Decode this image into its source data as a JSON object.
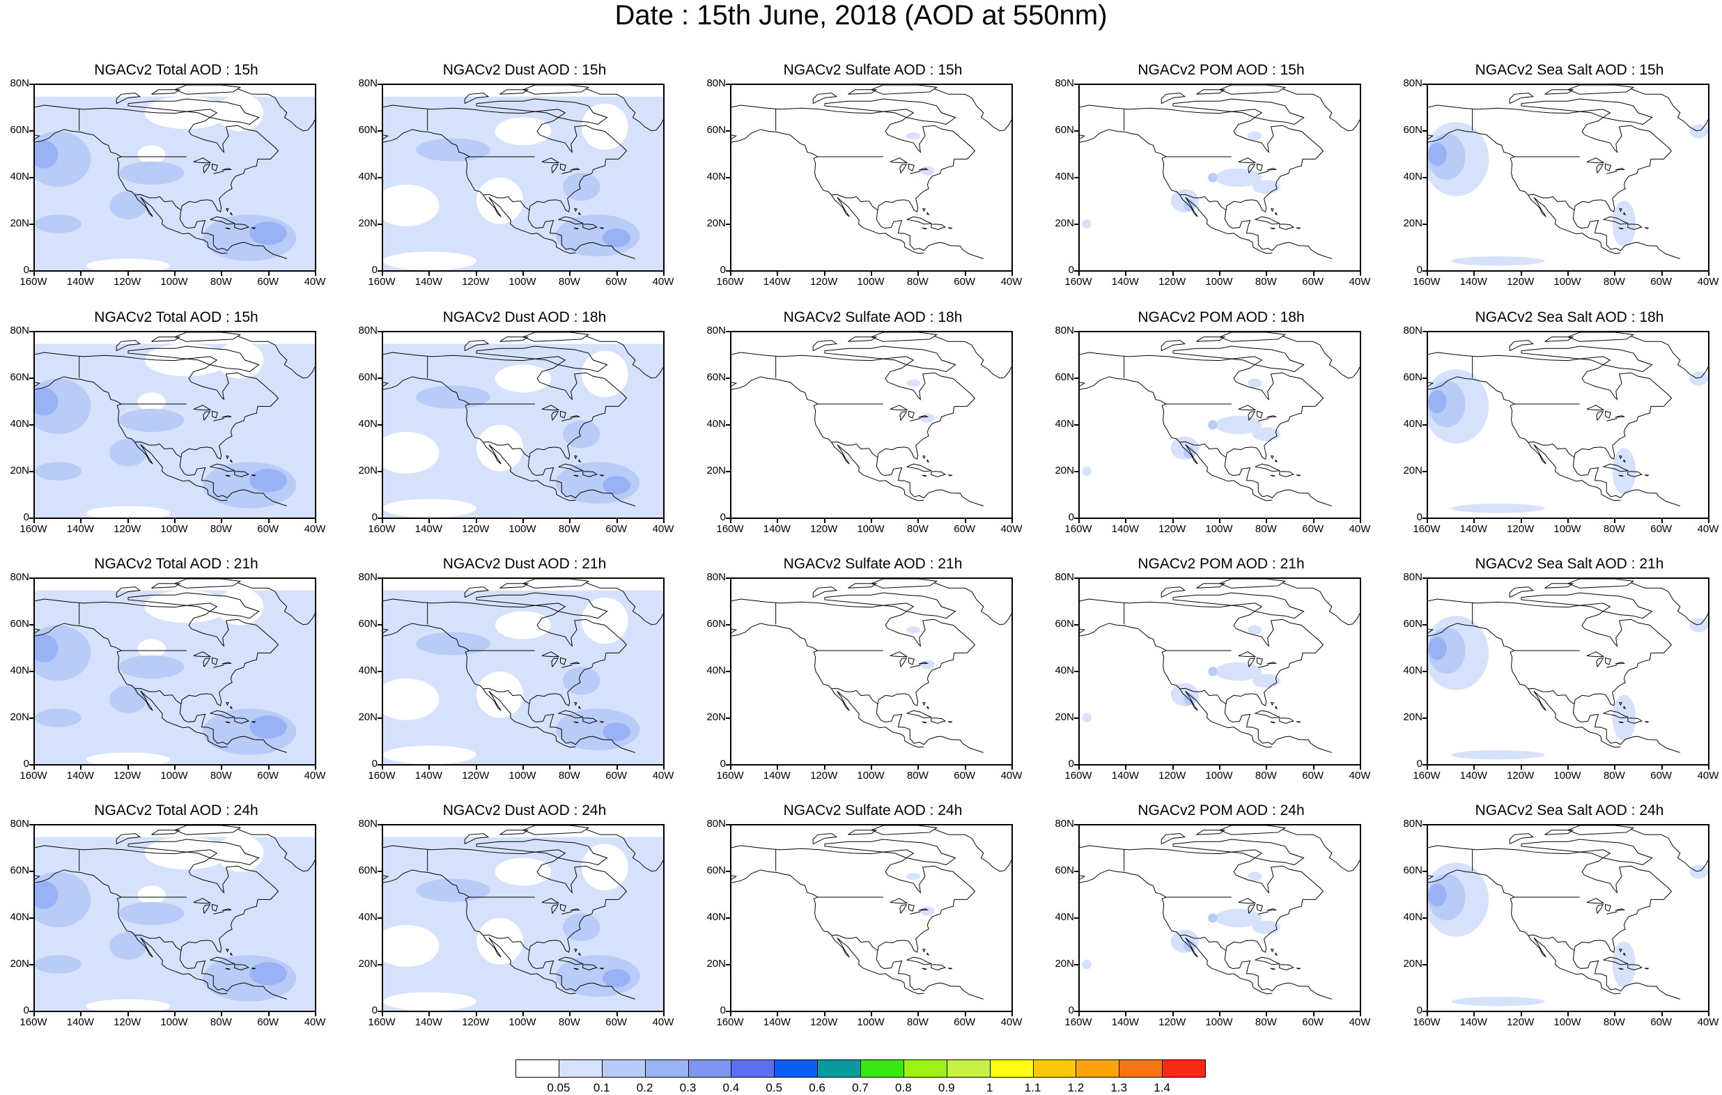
{
  "figure": {
    "title": "Date : 15th June, 2018 (AOD at 550nm)"
  },
  "axes": {
    "y_ticks": [
      "80N",
      "60N",
      "40N",
      "20N",
      "0"
    ],
    "x_ticks": [
      "160W",
      "140W",
      "120W",
      "100W",
      "80W",
      "60W",
      "40W"
    ]
  },
  "panels": [
    [
      "NGACv2 Total AOD : 15h",
      "NGACv2 Dust AOD : 15h",
      "NGACv2 Sulfate AOD : 15h",
      "NGACv2 POM AOD : 15h",
      "NGACv2 Sea Salt AOD : 15h"
    ],
    [
      "NGACv2 Total AOD : 15h",
      "NGACv2 Dust AOD : 18h",
      "NGACv2 Sulfate AOD : 18h",
      "NGACv2 POM AOD : 18h",
      "NGACv2 Sea Salt AOD : 18h"
    ],
    [
      "NGACv2 Total AOD : 21h",
      "NGACv2 Dust AOD : 21h",
      "NGACv2 Sulfate AOD : 21h",
      "NGACv2 POM AOD : 21h",
      "NGACv2 Sea Salt AOD : 21h"
    ],
    [
      "NGACv2 Total AOD : 24h",
      "NGACv2 Dust AOD : 24h",
      "NGACv2 Sulfate AOD : 24h",
      "NGACv2 POM AOD : 24h",
      "NGACv2 Sea Salt  AOD : 24h"
    ]
  ],
  "colorbar": {
    "labels": [
      "0.05",
      "0.1",
      "0.2",
      "0.3",
      "0.4",
      "0.5",
      "0.6",
      "0.7",
      "0.8",
      "0.9",
      "1",
      "1.1",
      "1.2",
      "1.3",
      "1.4"
    ],
    "colors": [
      "#ffffff",
      "#d6e2fb",
      "#b8ccf7",
      "#98b2f5",
      "#7f96f1",
      "#5e6ef0",
      "#0a5cf5",
      "#079a9e",
      "#38e812",
      "#9ef213",
      "#c7f243",
      "#fefe12",
      "#fbc80a",
      "#f9a20a",
      "#f67510",
      "#f72a15"
    ]
  },
  "map_styles": {
    "land_outline": "#000000",
    "aod_light": "#d6e2fb",
    "aod_mid": "#b8ccf7",
    "aod_high": "#98b2f5",
    "aod_peak": "#7f96f1"
  }
}
